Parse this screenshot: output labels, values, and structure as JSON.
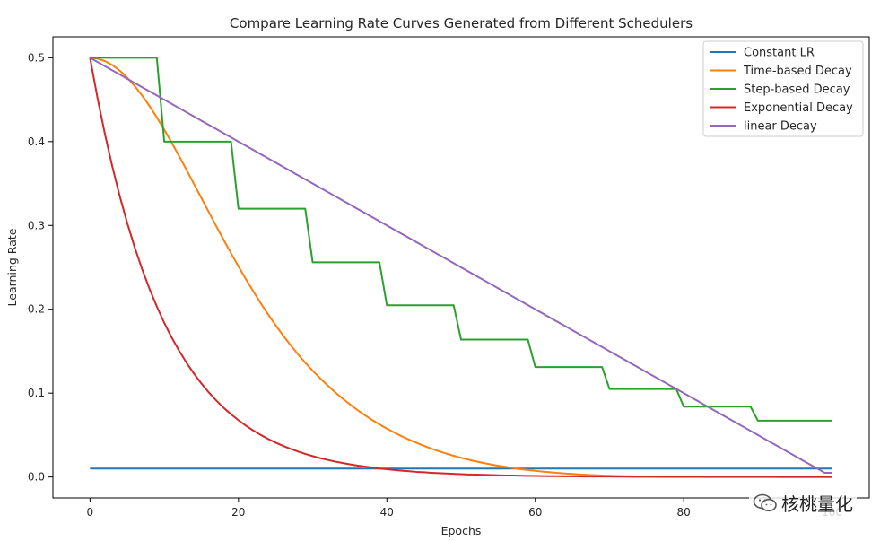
{
  "chart_data": {
    "type": "line",
    "title": "Compare Learning Rate Curves Generated from Different Schedulers",
    "xlabel": "Epochs",
    "ylabel": "Learning Rate",
    "xlim": [
      -5,
      105
    ],
    "ylim": [
      -0.025,
      0.525
    ],
    "xticks": [
      0,
      20,
      40,
      60,
      80,
      100
    ],
    "yticks": [
      0.0,
      0.1,
      0.2,
      0.3,
      0.4,
      0.5
    ],
    "legend_position": "top-right",
    "grid": false,
    "x": [
      0,
      1,
      2,
      3,
      4,
      5,
      6,
      7,
      8,
      9,
      10,
      11,
      12,
      13,
      14,
      15,
      16,
      17,
      18,
      19,
      20,
      21,
      22,
      23,
      24,
      25,
      26,
      27,
      28,
      29,
      30,
      31,
      32,
      33,
      34,
      35,
      36,
      37,
      38,
      39,
      40,
      41,
      42,
      43,
      44,
      45,
      46,
      47,
      48,
      49,
      50,
      51,
      52,
      53,
      54,
      55,
      56,
      57,
      58,
      59,
      60,
      61,
      62,
      63,
      64,
      65,
      66,
      67,
      68,
      69,
      70,
      71,
      72,
      73,
      74,
      75,
      76,
      77,
      78,
      79,
      80,
      81,
      82,
      83,
      84,
      85,
      86,
      87,
      88,
      89,
      90,
      91,
      92,
      93,
      94,
      95,
      96,
      97,
      98,
      99,
      100
    ],
    "series": [
      {
        "name": "Constant LR",
        "color": "#1f77b4",
        "values": [
          0.01,
          0.01,
          0.01,
          0.01,
          0.01,
          0.01,
          0.01,
          0.01,
          0.01,
          0.01,
          0.01,
          0.01,
          0.01,
          0.01,
          0.01,
          0.01,
          0.01,
          0.01,
          0.01,
          0.01,
          0.01,
          0.01,
          0.01,
          0.01,
          0.01,
          0.01,
          0.01,
          0.01,
          0.01,
          0.01,
          0.01,
          0.01,
          0.01,
          0.01,
          0.01,
          0.01,
          0.01,
          0.01,
          0.01,
          0.01,
          0.01,
          0.01,
          0.01,
          0.01,
          0.01,
          0.01,
          0.01,
          0.01,
          0.01,
          0.01,
          0.01,
          0.01,
          0.01,
          0.01,
          0.01,
          0.01,
          0.01,
          0.01,
          0.01,
          0.01,
          0.01,
          0.01,
          0.01,
          0.01,
          0.01,
          0.01,
          0.01,
          0.01,
          0.01,
          0.01,
          0.01,
          0.01,
          0.01,
          0.01,
          0.01,
          0.01,
          0.01,
          0.01,
          0.01,
          0.01,
          0.01,
          0.01,
          0.01,
          0.01,
          0.01,
          0.01,
          0.01,
          0.01,
          0.01,
          0.01,
          0.01,
          0.01,
          0.01,
          0.01,
          0.01,
          0.01,
          0.01,
          0.01,
          0.01,
          0.01,
          0.01
        ]
      },
      {
        "name": "Time-based Decay",
        "color": "#ff7f0e",
        "values": [
          0.5,
          0.499,
          0.4961,
          0.4913,
          0.4847,
          0.4764,
          0.4665,
          0.4552,
          0.4426,
          0.4289,
          0.4142,
          0.3988,
          0.3828,
          0.3663,
          0.3496,
          0.3328,
          0.316,
          0.2993,
          0.2829,
          0.2668,
          0.2512,
          0.236,
          0.2214,
          0.2073,
          0.1939,
          0.1811,
          0.1689,
          0.1574,
          0.1466,
          0.1363,
          0.1268,
          0.1178,
          0.1093,
          0.1013,
          0.0938,
          0.0868,
          0.0801,
          0.0739,
          0.0681,
          0.0627,
          0.0577,
          0.053,
          0.0486,
          0.0445,
          0.0407,
          0.0371,
          0.0338,
          0.0307,
          0.0279,
          0.0253,
          0.0229,
          0.0206,
          0.0186,
          0.0167,
          0.015,
          0.0134,
          0.012,
          0.0106,
          0.0094,
          0.0083,
          0.0073,
          0.0064,
          0.0056,
          0.0048,
          0.0042,
          0.0036,
          0.003,
          0.0026,
          0.0022,
          0.0018,
          0.0015,
          0.0012,
          0.001,
          0.0008,
          0.0006,
          0.0005,
          0.0004,
          0.0003,
          0.0002,
          0.0002,
          0.0001,
          0.0001,
          0.0001,
          0.0,
          0.0,
          0.0,
          0.0,
          0.0,
          0.0,
          0.0,
          0.0,
          0.0,
          0.0,
          0.0,
          0.0,
          0.0,
          0.0,
          0.0,
          0.0,
          0.0,
          0.0
        ]
      },
      {
        "name": "Step-based Decay",
        "color": "#2ca02c",
        "values": [
          0.5,
          0.5,
          0.5,
          0.5,
          0.5,
          0.5,
          0.5,
          0.5,
          0.5,
          0.5,
          0.4,
          0.4,
          0.4,
          0.4,
          0.4,
          0.4,
          0.4,
          0.4,
          0.4,
          0.4,
          0.32,
          0.32,
          0.32,
          0.32,
          0.32,
          0.32,
          0.32,
          0.32,
          0.32,
          0.32,
          0.256,
          0.256,
          0.256,
          0.256,
          0.256,
          0.256,
          0.256,
          0.256,
          0.256,
          0.256,
          0.2048,
          0.2048,
          0.2048,
          0.2048,
          0.2048,
          0.2048,
          0.2048,
          0.2048,
          0.2048,
          0.2048,
          0.1638,
          0.1638,
          0.1638,
          0.1638,
          0.1638,
          0.1638,
          0.1638,
          0.1638,
          0.1638,
          0.1638,
          0.1311,
          0.1311,
          0.1311,
          0.1311,
          0.1311,
          0.1311,
          0.1311,
          0.1311,
          0.1311,
          0.1311,
          0.1049,
          0.1049,
          0.1049,
          0.1049,
          0.1049,
          0.1049,
          0.1049,
          0.1049,
          0.1049,
          0.1049,
          0.0839,
          0.0839,
          0.0839,
          0.0839,
          0.0839,
          0.0839,
          0.0839,
          0.0839,
          0.0839,
          0.0839,
          0.0671,
          0.0671,
          0.0671,
          0.0671,
          0.0671,
          0.0671,
          0.0671,
          0.0671,
          0.0671,
          0.0671,
          0.0671
        ]
      },
      {
        "name": "Exponential Decay",
        "color": "#d62728",
        "values": [
          0.5,
          0.4524,
          0.4094,
          0.3704,
          0.3352,
          0.3033,
          0.2744,
          0.2483,
          0.2247,
          0.2033,
          0.1839,
          0.1664,
          0.1506,
          0.1363,
          0.1233,
          0.1116,
          0.1009,
          0.0913,
          0.0826,
          0.0748,
          0.0677,
          0.0612,
          0.0554,
          0.0501,
          0.0454,
          0.041,
          0.0371,
          0.0336,
          0.0304,
          0.0275,
          0.0249,
          0.0225,
          0.0204,
          0.0184,
          0.0167,
          0.0151,
          0.0137,
          0.0124,
          0.0112,
          0.0101,
          0.0092,
          0.0083,
          0.0075,
          0.0068,
          0.0061,
          0.0056,
          0.005,
          0.0045,
          0.0041,
          0.0037,
          0.0034,
          0.003,
          0.0028,
          0.0025,
          0.0023,
          0.002,
          0.0018,
          0.0017,
          0.0015,
          0.0014,
          0.0012,
          0.0011,
          0.001,
          0.0009,
          0.0008,
          0.0008,
          0.0007,
          0.0006,
          0.0006,
          0.0005,
          0.0005,
          0.0004,
          0.0004,
          0.0003,
          0.0003,
          0.0003,
          0.0003,
          0.0002,
          0.0002,
          0.0002,
          0.0002,
          0.0002,
          0.0001,
          0.0001,
          0.0001,
          0.0001,
          0.0001,
          0.0001,
          0.0001,
          0.0001,
          0.0001,
          0.0001,
          0.0001,
          0.0,
          0.0,
          0.0,
          0.0,
          0.0,
          0.0,
          0.0,
          0.0
        ]
      },
      {
        "name": "linear Decay",
        "color": "#9467bd",
        "values": [
          0.5,
          0.495,
          0.49,
          0.485,
          0.48,
          0.475,
          0.47,
          0.465,
          0.46,
          0.455,
          0.45,
          0.445,
          0.44,
          0.435,
          0.43,
          0.425,
          0.42,
          0.415,
          0.41,
          0.405,
          0.4,
          0.395,
          0.39,
          0.385,
          0.38,
          0.375,
          0.37,
          0.365,
          0.36,
          0.355,
          0.35,
          0.345,
          0.34,
          0.335,
          0.33,
          0.325,
          0.32,
          0.315,
          0.31,
          0.305,
          0.3,
          0.295,
          0.29,
          0.285,
          0.28,
          0.275,
          0.27,
          0.265,
          0.26,
          0.255,
          0.25,
          0.245,
          0.24,
          0.235,
          0.23,
          0.225,
          0.22,
          0.215,
          0.21,
          0.205,
          0.2,
          0.195,
          0.19,
          0.185,
          0.18,
          0.175,
          0.17,
          0.165,
          0.16,
          0.155,
          0.15,
          0.145,
          0.14,
          0.135,
          0.13,
          0.125,
          0.12,
          0.115,
          0.11,
          0.105,
          0.1,
          0.095,
          0.09,
          0.085,
          0.08,
          0.075,
          0.07,
          0.065,
          0.06,
          0.055,
          0.05,
          0.045,
          0.04,
          0.035,
          0.03,
          0.025,
          0.02,
          0.015,
          0.01,
          0.005,
          0.005
        ]
      }
    ]
  },
  "watermark": {
    "text": "核桃量化",
    "icon": "wechat-icon"
  }
}
